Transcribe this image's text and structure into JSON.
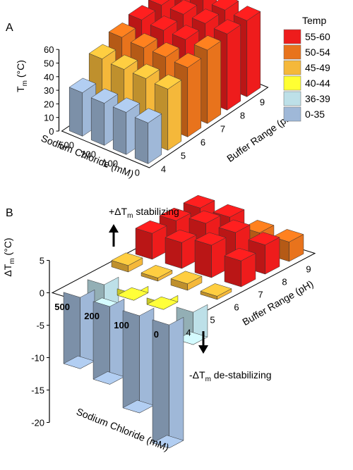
{
  "legend": {
    "title": "Temp",
    "items": [
      {
        "label": "55-60",
        "color": "#ee1c1c"
      },
      {
        "label": "50-54",
        "color": "#e8731c"
      },
      {
        "label": "45-49",
        "color": "#f5b83a"
      },
      {
        "label": "40-44",
        "color": "#ffff33"
      },
      {
        "label": "36-39",
        "color": "#bde0e8"
      },
      {
        "label": "0-35",
        "color": "#9fb8d8"
      }
    ]
  },
  "chart_data": [
    {
      "panel": "A",
      "type": "bar3d",
      "ylabel_main": "T",
      "ylabel_sub": "m",
      "ylabel_unit": " (°C)",
      "xlabel": "Buffer Range (pH)",
      "zlabel": "Sodium Chloride (mM)",
      "y_ticks": [
        "0",
        "10",
        "20",
        "30",
        "40",
        "50",
        "60"
      ],
      "ylim": [
        0,
        60
      ],
      "ph_categories": [
        "4",
        "5",
        "6",
        "7",
        "8",
        "9"
      ],
      "nacl_categories": [
        "0",
        "100",
        "200",
        "500"
      ],
      "values": [
        [
          30,
          31,
          31,
          32
        ],
        [
          45,
          46,
          46,
          47
        ],
        [
          51,
          52,
          52,
          53
        ],
        [
          54,
          55,
          55,
          56
        ],
        [
          56,
          57,
          57,
          57
        ],
        [
          56,
          57,
          58,
          58
        ]
      ]
    },
    {
      "panel": "B",
      "type": "bar3d",
      "ylabel_main": "ΔT",
      "ylabel_sub": "m",
      "ylabel_unit": " (°C)",
      "xlabel": "Buffer Range (pH)",
      "zlabel": "Sodium Chloride (mM)",
      "y_ticks": [
        "-20",
        "-15",
        "-10",
        "-5",
        "0",
        "5"
      ],
      "ylim": [
        -20,
        5
      ],
      "ph_categories": [
        "4",
        "5",
        "6",
        "7",
        "8",
        "9"
      ],
      "nacl_categories": [
        "0",
        "100",
        "200",
        "500"
      ],
      "values": [
        [
          -19,
          -15,
          -12,
          -11
        ],
        [
          -5,
          -1,
          -1,
          -4
        ],
        [
          0.5,
          1,
          0.5,
          1
        ],
        [
          4,
          5,
          4,
          4
        ],
        [
          4.5,
          5,
          5,
          4
        ],
        [
          3,
          3,
          4,
          4
        ]
      ]
    }
  ],
  "annotations": {
    "stabilizing_prefix": "+ΔT",
    "stabilizing_sub": "m",
    "stabilizing_suffix": " stabilizing",
    "destabilizing_prefix": "-ΔT",
    "destabilizing_sub": "m",
    "destabilizing_suffix": " de-stabilizing"
  }
}
